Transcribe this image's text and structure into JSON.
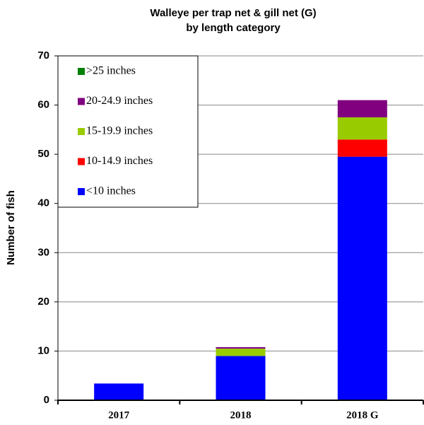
{
  "chart_data": {
    "type": "stacked_bar",
    "title": "Walleye per trap net & gill net (G)",
    "subtitle": "by length category",
    "y_label": "Number of fish",
    "categories": [
      "2017",
      "2018",
      "2018 G"
    ],
    "series": [
      {
        "name": "<10 inches",
        "color": "#0000ff",
        "values": [
          3.4,
          9.0,
          49.5
        ]
      },
      {
        "name": "10-14.9 inches",
        "color": "#ff0000",
        "values": [
          0,
          0,
          3.5
        ]
      },
      {
        "name": "15-19.9 inches",
        "color": "#99cc00",
        "values": [
          0,
          1.5,
          4.5
        ]
      },
      {
        "name": "20-24.9 inches",
        "color": "#800080",
        "values": [
          0,
          0.3,
          3.5
        ]
      },
      {
        "name": ">25 inches",
        "color": "#008000",
        "values": [
          0,
          0,
          0
        ]
      }
    ],
    "ylim": [
      0,
      70
    ],
    "yticks": [
      0,
      10,
      20,
      30,
      40,
      50,
      60,
      70
    ],
    "grid": true,
    "legend": "upper left"
  }
}
